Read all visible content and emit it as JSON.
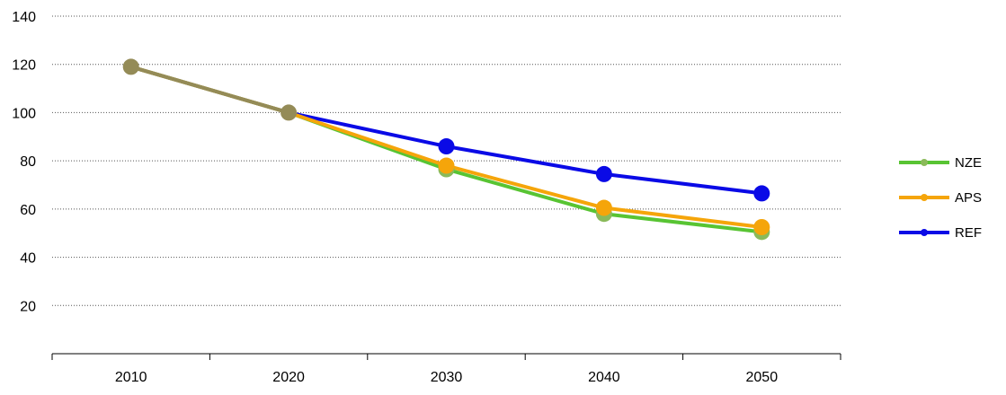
{
  "chart_data": {
    "type": "line",
    "title": "",
    "xlabel": "",
    "ylabel": "",
    "categories": [
      "2010",
      "2020",
      "2030",
      "2040",
      "2050"
    ],
    "y_ticks": [
      "20",
      "40",
      "60",
      "80",
      "100",
      "120",
      "140"
    ],
    "ylim": [
      0,
      140
    ],
    "grid": true,
    "legend_position": "right",
    "series": [
      {
        "name": "REF",
        "color": "#0a0ae6",
        "values": [
          119,
          100,
          86,
          74.5,
          66.5
        ]
      },
      {
        "name": "NZE",
        "color": "#58c433",
        "marker_color": "#8aba5a",
        "values": [
          119,
          100,
          76.5,
          58,
          50.5
        ]
      },
      {
        "name": "APS",
        "color": "#f5a50a",
        "values": [
          119,
          100,
          78,
          60.5,
          52.5
        ]
      }
    ],
    "legend_order": [
      "NZE",
      "APS",
      "REF"
    ],
    "shared_point_color": "#948b57"
  }
}
